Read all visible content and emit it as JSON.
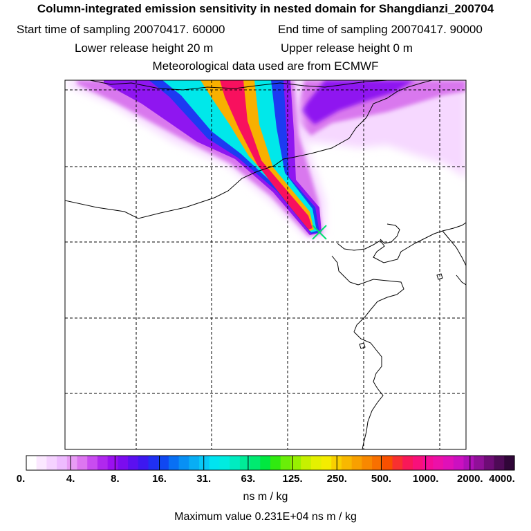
{
  "header": {
    "title": "Column-integrated emission sensitivity in nested domain for Shangdianzi_200704",
    "start_label": "Start time of sampling 20070417. 60000",
    "end_label": "End time of sampling 20070417. 90000",
    "lower_label": "Lower release height   20 m",
    "upper_label": "Upper release height    0 m",
    "met_label": "Meteorological data used are from ECMWF"
  },
  "colorbar": {
    "labels": [
      "0.",
      "4.",
      "8.",
      "16.",
      "31.",
      "63.",
      "125.",
      "250.",
      "500.",
      "1000.",
      "2000.",
      "4000."
    ],
    "colors": [
      "#ffffff",
      "#fbe8ff",
      "#f5d2ff",
      "#eebbff",
      "#e89cf5",
      "#dd76f0",
      "#c94cf0",
      "#b028ee",
      "#9b10f0",
      "#7b0cef",
      "#5b10f0",
      "#3d18f0",
      "#2030f2",
      "#1048f2",
      "#0870f4",
      "#0890f4",
      "#08aef4",
      "#08c8f6",
      "#00e4f0",
      "#00ece0",
      "#00ecc0",
      "#00ec98",
      "#00ea70",
      "#00e840",
      "#30ea10",
      "#6aee08",
      "#98f000",
      "#c6f000",
      "#e4f000",
      "#f4ec00",
      "#f8d000",
      "#f8b800",
      "#f8a000",
      "#f88800",
      "#f87000",
      "#f85000",
      "#f83030",
      "#f81858",
      "#f8107a",
      "#f40c96",
      "#ec10a8",
      "#e010b8",
      "#cc10c0",
      "#b010b8",
      "#901098",
      "#6e0c76",
      "#4e0a56",
      "#300638"
    ],
    "units": "ns m / kg",
    "max_value": "Maximum value  0.231E+04 ns m / kg"
  },
  "map": {
    "release_site": "Shangdianzi",
    "marker_color": "#00e070",
    "plume_colors": [
      "#f6d8ff",
      "#d978ee",
      "#8f16f0",
      "#1d3af2",
      "#00e8ea",
      "#f8b000",
      "#f8105e"
    ]
  }
}
